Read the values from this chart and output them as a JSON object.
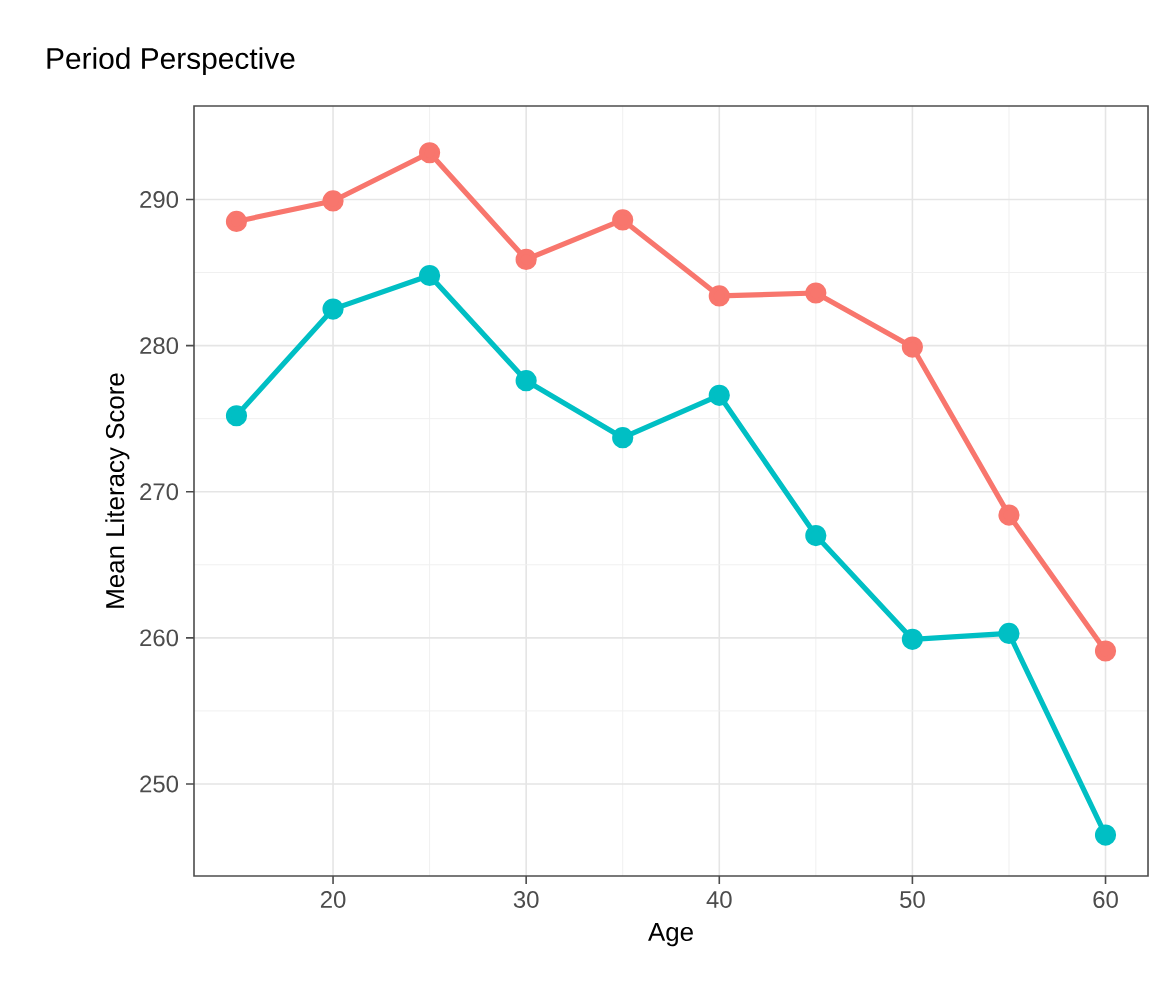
{
  "chart_data": {
    "type": "line",
    "title": "Period Perspective",
    "xlabel": "Age",
    "ylabel": "Mean Literacy Score",
    "x": [
      15,
      20,
      25,
      30,
      35,
      40,
      45,
      50,
      55,
      60
    ],
    "series": [
      {
        "color": "#f8766d",
        "values": [
          288.5,
          289.9,
          293.2,
          285.9,
          288.6,
          283.4,
          283.6,
          279.9,
          268.4,
          259.1
        ]
      },
      {
        "color": "#00bfc4",
        "values": [
          275.2,
          282.5,
          284.8,
          277.6,
          273.7,
          276.6,
          267.0,
          259.9,
          260.3,
          246.5
        ]
      }
    ],
    "xlim": [
      12.8,
      62.2
    ],
    "ylim": [
      243.7,
      296.4
    ],
    "xticks": [
      20,
      30,
      40,
      50,
      60
    ],
    "yticks": [
      250,
      260,
      270,
      280,
      290
    ],
    "grid": true,
    "marker": "circle",
    "line_style": "solid"
  }
}
